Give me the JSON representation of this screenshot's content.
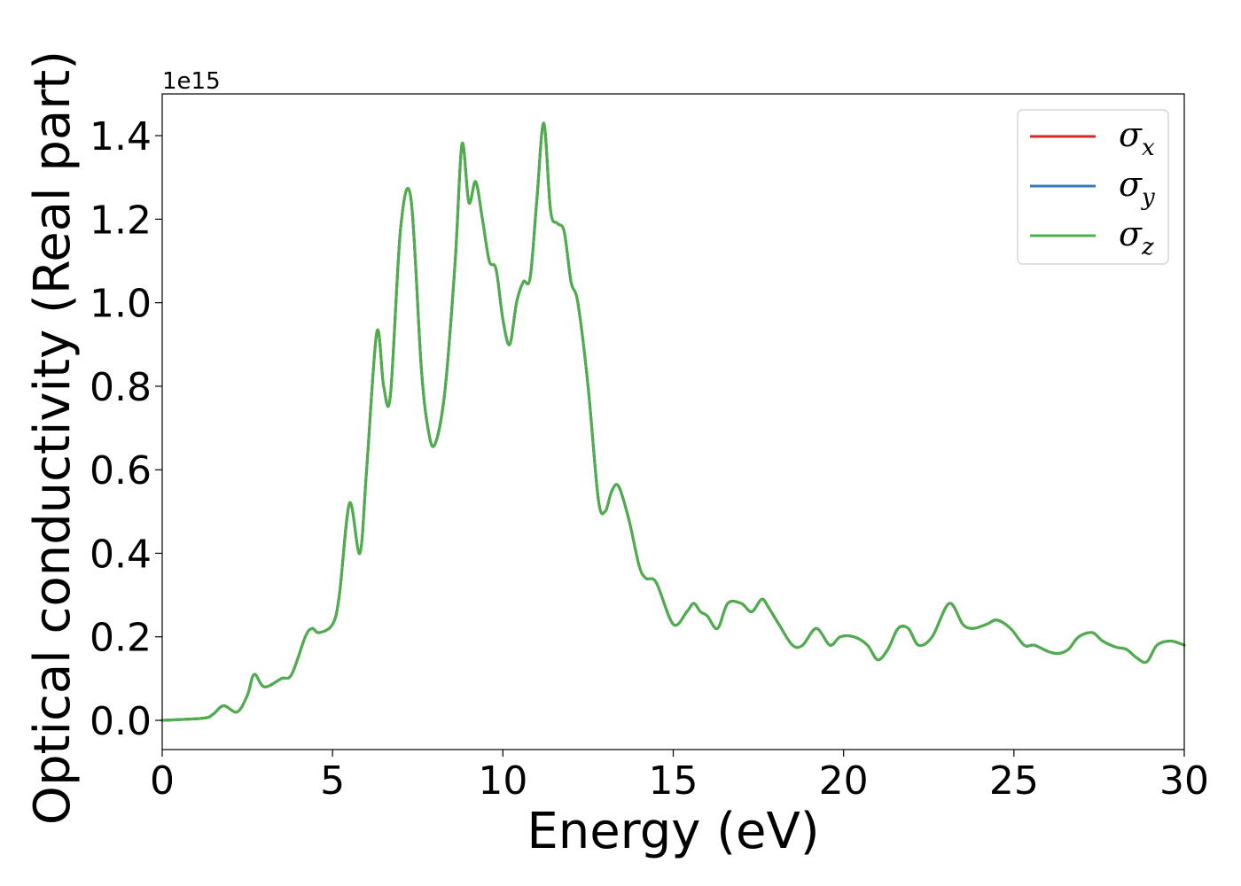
{
  "chart_data": {
    "type": "line",
    "xlabel": "Energy (eV)",
    "ylabel": "Optical conductivity (Real part)",
    "y_offset_text": "1e15",
    "xlim": [
      0,
      30
    ],
    "ylim": [
      -0.07,
      1.5
    ],
    "x_ticks": [
      0,
      5,
      10,
      15,
      20,
      25,
      30
    ],
    "x_tick_labels": [
      "0",
      "5",
      "10",
      "15",
      "20",
      "25",
      "30"
    ],
    "y_ticks": [
      0.0,
      0.2,
      0.4,
      0.6,
      0.8,
      1.0,
      1.2,
      1.4
    ],
    "y_tick_labels": [
      "0.0",
      "0.2",
      "0.4",
      "0.6",
      "0.8",
      "1.0",
      "1.2",
      "1.4"
    ],
    "grid": false,
    "legend_position": "top-right",
    "legend": [
      {
        "sym": "σ",
        "sub": "x",
        "color": "#d62728"
      },
      {
        "sym": "σ",
        "sub": "y",
        "color": "#3a78b5"
      },
      {
        "sym": "σ",
        "sub": "z",
        "color": "#4daf4a"
      }
    ],
    "x": [
      0,
      1.2,
      1.5,
      1.8,
      2.2,
      2.5,
      2.7,
      3.0,
      3.5,
      3.8,
      4.2,
      4.4,
      4.6,
      5.0,
      5.2,
      5.5,
      5.8,
      6.0,
      6.3,
      6.5,
      6.7,
      7.0,
      7.3,
      7.6,
      7.8,
      8.0,
      8.3,
      8.6,
      8.8,
      9.0,
      9.2,
      9.4,
      9.6,
      9.8,
      10.0,
      10.2,
      10.4,
      10.6,
      10.8,
      11.0,
      11.2,
      11.4,
      11.6,
      11.8,
      12.0,
      12.2,
      12.5,
      12.8,
      13.0,
      13.2,
      13.4,
      13.7,
      14.0,
      14.2,
      14.5,
      15.0,
      15.4,
      15.6,
      15.8,
      16.0,
      16.3,
      16.6,
      17.0,
      17.3,
      17.6,
      17.8,
      18.1,
      18.5,
      18.8,
      19.2,
      19.6,
      19.9,
      20.3,
      20.7,
      21.0,
      21.3,
      21.6,
      21.9,
      22.2,
      22.6,
      23.1,
      23.5,
      23.8,
      24.2,
      24.5,
      24.9,
      25.3,
      25.6,
      26.0,
      26.3,
      26.6,
      26.9,
      27.3,
      27.6,
      28.0,
      28.3,
      28.6,
      28.9,
      29.2,
      29.6,
      30.0
    ],
    "series": [
      {
        "name": "σx",
        "color": "#d62728",
        "values": [
          0.0,
          0.005,
          0.015,
          0.035,
          0.02,
          0.06,
          0.11,
          0.08,
          0.1,
          0.11,
          0.2,
          0.22,
          0.21,
          0.23,
          0.3,
          0.52,
          0.4,
          0.6,
          0.93,
          0.8,
          0.78,
          1.18,
          1.25,
          0.85,
          0.7,
          0.66,
          0.79,
          1.1,
          1.38,
          1.24,
          1.29,
          1.2,
          1.1,
          1.08,
          0.96,
          0.9,
          1.0,
          1.05,
          1.06,
          1.25,
          1.43,
          1.22,
          1.19,
          1.17,
          1.05,
          1.0,
          0.8,
          0.53,
          0.5,
          0.55,
          0.56,
          0.48,
          0.37,
          0.34,
          0.33,
          0.23,
          0.26,
          0.28,
          0.26,
          0.25,
          0.22,
          0.28,
          0.28,
          0.26,
          0.29,
          0.27,
          0.23,
          0.18,
          0.18,
          0.22,
          0.18,
          0.2,
          0.2,
          0.18,
          0.145,
          0.17,
          0.22,
          0.22,
          0.18,
          0.2,
          0.28,
          0.23,
          0.22,
          0.23,
          0.24,
          0.22,
          0.18,
          0.18,
          0.165,
          0.16,
          0.17,
          0.2,
          0.21,
          0.19,
          0.175,
          0.17,
          0.15,
          0.14,
          0.18,
          0.19,
          0.18
        ]
      },
      {
        "name": "σy",
        "color": "#3a78b5",
        "values": [
          0.0,
          0.005,
          0.015,
          0.035,
          0.02,
          0.06,
          0.11,
          0.08,
          0.1,
          0.11,
          0.2,
          0.22,
          0.21,
          0.23,
          0.3,
          0.52,
          0.4,
          0.6,
          0.93,
          0.8,
          0.78,
          1.18,
          1.25,
          0.85,
          0.7,
          0.66,
          0.79,
          1.1,
          1.38,
          1.24,
          1.29,
          1.2,
          1.1,
          1.08,
          0.96,
          0.9,
          1.0,
          1.05,
          1.06,
          1.25,
          1.43,
          1.22,
          1.19,
          1.17,
          1.05,
          1.0,
          0.8,
          0.53,
          0.5,
          0.55,
          0.56,
          0.48,
          0.37,
          0.34,
          0.33,
          0.23,
          0.26,
          0.28,
          0.26,
          0.25,
          0.22,
          0.28,
          0.28,
          0.26,
          0.29,
          0.27,
          0.23,
          0.18,
          0.18,
          0.22,
          0.18,
          0.2,
          0.2,
          0.18,
          0.145,
          0.17,
          0.22,
          0.22,
          0.18,
          0.2,
          0.28,
          0.23,
          0.22,
          0.23,
          0.24,
          0.22,
          0.18,
          0.18,
          0.165,
          0.16,
          0.17,
          0.2,
          0.21,
          0.19,
          0.175,
          0.17,
          0.15,
          0.14,
          0.18,
          0.19,
          0.18
        ]
      },
      {
        "name": "σz",
        "color": "#4daf4a",
        "values": [
          0.0,
          0.005,
          0.015,
          0.035,
          0.02,
          0.06,
          0.11,
          0.08,
          0.1,
          0.11,
          0.2,
          0.22,
          0.21,
          0.23,
          0.3,
          0.52,
          0.4,
          0.6,
          0.93,
          0.8,
          0.78,
          1.18,
          1.25,
          0.85,
          0.7,
          0.66,
          0.79,
          1.1,
          1.38,
          1.24,
          1.29,
          1.2,
          1.1,
          1.08,
          0.96,
          0.9,
          1.0,
          1.05,
          1.06,
          1.25,
          1.43,
          1.22,
          1.19,
          1.17,
          1.05,
          1.0,
          0.8,
          0.53,
          0.5,
          0.55,
          0.56,
          0.48,
          0.37,
          0.34,
          0.33,
          0.23,
          0.26,
          0.28,
          0.26,
          0.25,
          0.22,
          0.28,
          0.28,
          0.26,
          0.29,
          0.27,
          0.23,
          0.18,
          0.18,
          0.22,
          0.18,
          0.2,
          0.2,
          0.18,
          0.145,
          0.17,
          0.22,
          0.22,
          0.18,
          0.2,
          0.28,
          0.23,
          0.22,
          0.23,
          0.24,
          0.22,
          0.18,
          0.18,
          0.165,
          0.16,
          0.17,
          0.2,
          0.21,
          0.19,
          0.175,
          0.17,
          0.15,
          0.14,
          0.18,
          0.19,
          0.18
        ]
      }
    ]
  }
}
